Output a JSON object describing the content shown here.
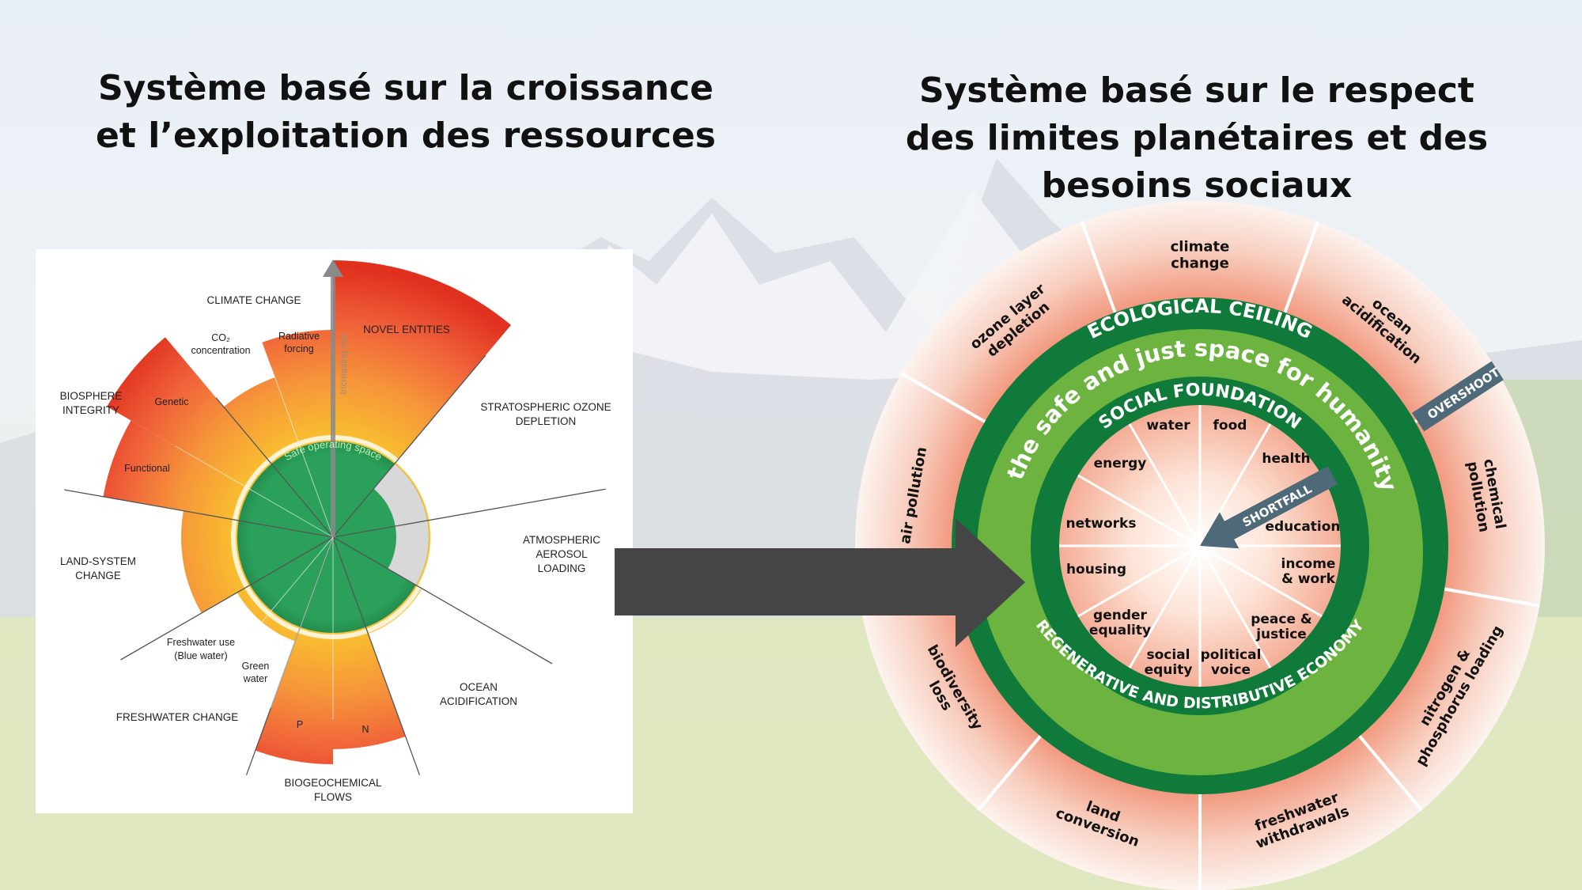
{
  "titles": {
    "left": [
      "Système basé sur la croissance",
      "et l’exploitation des ressources"
    ],
    "right": [
      "Système basé sur le respect",
      "des limites planétaires et des",
      "besoins sociaux"
    ]
  },
  "planetary_boundaries": {
    "center_label": "Safe operating space",
    "axis_label": "Increasing risk",
    "boundaries": {
      "climate_change": "CLIMATE CHANGE",
      "co2": [
        "CO₂",
        "concentration"
      ],
      "radiative": [
        "Radiative",
        "forcing"
      ],
      "novel_entities": "NOVEL ENTITIES",
      "ozone": [
        "STRATOSPHERIC OZONE",
        "DEPLETION"
      ],
      "aerosol": [
        "ATMOSPHERIC",
        "AEROSOL",
        "LOADING"
      ],
      "ocean": [
        "OCEAN",
        "ACIDIFICATION"
      ],
      "biogeochemical": [
        "BIOGEOCHEMICAL",
        "FLOWS"
      ],
      "p": "P",
      "n": "N",
      "freshwater": "FRESHWATER CHANGE",
      "blue_water": [
        "Freshwater use",
        "(Blue water)"
      ],
      "green_water": [
        "Green",
        "water"
      ],
      "land": [
        "LAND-SYSTEM",
        "CHANGE"
      ],
      "biosphere": [
        "BIOSPHERE",
        "INTEGRITY"
      ],
      "genetic": "Genetic",
      "functional": "Functional"
    },
    "colors": {
      "safe": "#2aa05a",
      "low_risk": "#f9c02f",
      "high_risk": "#e0301e",
      "unknown": "#d8d8d8"
    }
  },
  "doughnut": {
    "ecological_ceiling": "ECOLOGICAL CEILING",
    "safe_space": "the safe and just space for humanity",
    "social_foundation": "SOCIAL FOUNDATION",
    "economy": "REGENERATIVE AND DISTRIBUTIVE ECONOMY",
    "overshoot": "OVERSHOOT",
    "shortfall": "SHORTFALL",
    "ceiling_items": [
      [
        "climate",
        "change"
      ],
      [
        "ocean",
        "acidification"
      ],
      [
        "chemical",
        "pollution"
      ],
      [
        "nitrogen &",
        "phosphorus loading"
      ],
      [
        "freshwater",
        "withdrawals"
      ],
      [
        "land",
        "conversion"
      ],
      [
        "biodiversity",
        "loss"
      ],
      [
        "air pollution"
      ],
      [
        "ozone layer",
        "depletion"
      ]
    ],
    "foundation_items": [
      [
        "water"
      ],
      [
        "food"
      ],
      [
        "health"
      ],
      [
        "education"
      ],
      [
        "income",
        "& work"
      ],
      [
        "peace &",
        "justice"
      ],
      [
        "political",
        "voice"
      ],
      [
        "social",
        "equity"
      ],
      [
        "gender",
        "equality"
      ],
      [
        "housing"
      ],
      [
        "networks"
      ],
      [
        "energy"
      ]
    ],
    "colors": {
      "dark_green": "#0f7a3a",
      "light_green": "#6cb33f",
      "salmon": "#f4ad96",
      "arrow": "#4e6a78"
    }
  },
  "arrow": {
    "color": "#454545"
  }
}
